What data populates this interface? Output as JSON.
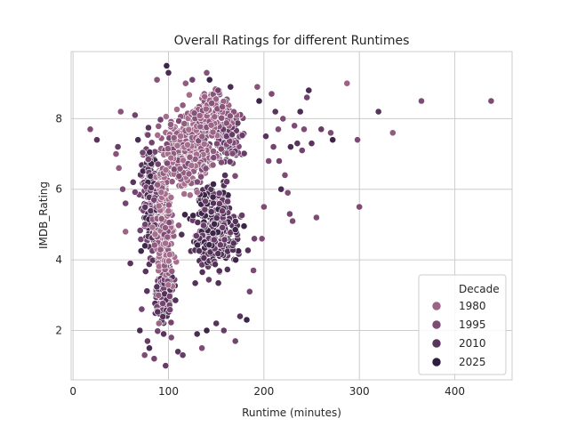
{
  "chart_data": {
    "type": "scatter",
    "title": "Overall Ratings for different Runtimes",
    "xlabel": "Runtime (minutes)",
    "ylabel": "IMDB_Rating",
    "xlim": [
      -2,
      460
    ],
    "ylim": [
      0.6,
      9.9
    ],
    "x_ticks": [
      0,
      100,
      200,
      300,
      400
    ],
    "y_ticks": [
      2,
      4,
      6,
      8
    ],
    "grid": true,
    "legend": {
      "title": "Decade",
      "placement": "lower-right",
      "entries": [
        {
          "label": "1980",
          "decade": 1980
        },
        {
          "label": "1995",
          "decade": 1995
        },
        {
          "label": "2010",
          "decade": 2010
        },
        {
          "label": "2025",
          "decade": 2025
        }
      ]
    },
    "hue_scale": {
      "domain": [
        1915,
        2025
      ],
      "colors": [
        "#f3ded8",
        "#eccdc4",
        "#c28fa4",
        "#9a6185",
        "#6d3f6b",
        "#2d1e3e"
      ]
    },
    "points": [
      [
        18,
        7.7,
        1995
      ],
      [
        25,
        7.4,
        2010
      ],
      [
        45,
        7.0,
        1990
      ],
      [
        47,
        7.2,
        2005
      ],
      [
        50,
        8.2,
        1990
      ],
      [
        52,
        6.0,
        1995
      ],
      [
        55,
        5.6,
        2000
      ],
      [
        48,
        6.6,
        1985
      ],
      [
        55,
        4.8,
        1980
      ],
      [
        60,
        3.9,
        2010
      ],
      [
        63,
        6.2,
        2010
      ],
      [
        65,
        8.1,
        2000
      ],
      [
        68,
        7.4,
        2015
      ],
      [
        70,
        2.0,
        2015
      ],
      [
        72,
        2.6,
        2000
      ],
      [
        75,
        1.3,
        1995
      ],
      [
        78,
        1.7,
        2005
      ],
      [
        80,
        1.5,
        2015
      ],
      [
        85,
        1.2,
        2000
      ],
      [
        88,
        9.1,
        1990
      ],
      [
        90,
        2.2,
        1980
      ],
      [
        95,
        1.9,
        2010
      ],
      [
        97,
        1.0,
        2005
      ],
      [
        98,
        9.5,
        2020
      ],
      [
        100,
        9.3,
        2015
      ],
      [
        103,
        1.8,
        1995
      ],
      [
        110,
        1.4,
        2010
      ],
      [
        115,
        1.3,
        2005
      ],
      [
        118,
        9.0,
        1985
      ],
      [
        125,
        9.1,
        2000
      ],
      [
        130,
        1.9,
        2015
      ],
      [
        135,
        1.5,
        1995
      ],
      [
        140,
        9.3,
        1990
      ],
      [
        140,
        2.0,
        2020
      ],
      [
        143,
        9.1,
        2020
      ],
      [
        150,
        2.2,
        2010
      ],
      [
        152,
        8.8,
        2000
      ],
      [
        158,
        2.0,
        2005
      ],
      [
        165,
        8.9,
        2015
      ],
      [
        170,
        1.7,
        2000
      ],
      [
        175,
        2.4,
        2010
      ],
      [
        182,
        2.3,
        2020
      ],
      [
        185,
        3.1,
        2000
      ],
      [
        189,
        3.7,
        1995
      ],
      [
        190,
        4.6,
        2000
      ],
      [
        193,
        8.9,
        1990
      ],
      [
        195,
        8.5,
        2020
      ],
      [
        198,
        4.6,
        1995
      ],
      [
        200,
        5.5,
        1995
      ],
      [
        202,
        7.5,
        2010
      ],
      [
        205,
        6.8,
        1995
      ],
      [
        208,
        8.7,
        1995
      ],
      [
        210,
        7.2,
        2000
      ],
      [
        212,
        8.2,
        2010
      ],
      [
        215,
        7.7,
        1995
      ],
      [
        216,
        6.8,
        2000
      ],
      [
        218,
        6.0,
        2015
      ],
      [
        220,
        8.0,
        1995
      ],
      [
        222,
        6.4,
        1995
      ],
      [
        225,
        5.9,
        1995
      ],
      [
        227,
        5.3,
        2000
      ],
      [
        228,
        7.2,
        2015
      ],
      [
        230,
        5.1,
        1995
      ],
      [
        232,
        7.8,
        1995
      ],
      [
        235,
        7.3,
        2010
      ],
      [
        238,
        8.2,
        2015
      ],
      [
        240,
        7.1,
        2000
      ],
      [
        242,
        7.7,
        1995
      ],
      [
        245,
        8.6,
        2000
      ],
      [
        247,
        8.8,
        2015
      ],
      [
        250,
        7.3,
        2010
      ],
      [
        255,
        5.2,
        1995
      ],
      [
        260,
        7.7,
        2005
      ],
      [
        270,
        7.6,
        1995
      ],
      [
        272,
        7.4,
        2020
      ],
      [
        287,
        9.0,
        1980
      ],
      [
        298,
        7.4,
        1995
      ],
      [
        300,
        5.5,
        1995
      ],
      [
        320,
        8.2,
        2010
      ],
      [
        335,
        7.6,
        1985
      ],
      [
        365,
        8.5,
        1995
      ],
      [
        438,
        8.5,
        1995
      ]
    ]
  }
}
